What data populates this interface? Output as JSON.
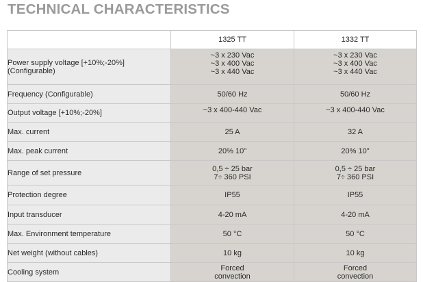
{
  "title": "TECHNICAL CHARACTERISTICS",
  "columns": [
    "1325 TT",
    "1332 TT"
  ],
  "rows": [
    {
      "label": [
        "Power supply voltage [+10%;-20%]",
        "(Configurable)"
      ],
      "a": [
        "~3 x 230 Vac",
        "~3 x 400 Vac",
        "~3 x 440 Vac"
      ],
      "b": [
        "~3 x 230 Vac",
        "~3 x 400 Vac",
        "~3 x 440 Vac"
      ]
    },
    {
      "label": [
        "Frequency (Configurable)"
      ],
      "a": [
        "50/60 Hz"
      ],
      "b": [
        "50/60 Hz"
      ]
    },
    {
      "label": [
        "Output voltage  [+10%;-20%]"
      ],
      "a": [
        "~3 x 400-440 Vac"
      ],
      "b": [
        "~3 x 400-440 Vac"
      ]
    },
    {
      "label": [
        "Max. current"
      ],
      "a": [
        "25 A"
      ],
      "b": [
        "32 A"
      ]
    },
    {
      "label": [
        "Max. peak current"
      ],
      "a": [
        "20% 10\""
      ],
      "b": [
        "20% 10\""
      ]
    },
    {
      "label": [
        "Range of set pressure"
      ],
      "a": [
        "0,5 ÷ 25 bar",
        "7÷ 360 PSI"
      ],
      "b": [
        "0,5 ÷ 25 bar",
        "7÷ 360 PSI"
      ]
    },
    {
      "label": [
        "Protection degree"
      ],
      "a": [
        "IP55"
      ],
      "b": [
        "IP55"
      ]
    },
    {
      "label": [
        "Input transducer"
      ],
      "a": [
        "4-20 mA"
      ],
      "b": [
        "4-20 mA"
      ]
    },
    {
      "label": [
        "Max. Environment temperature"
      ],
      "a": [
        "50 °C"
      ],
      "b": [
        "50 °C"
      ]
    },
    {
      "label": [
        "Net weight (without cables)"
      ],
      "a": [
        "10 kg"
      ],
      "b": [
        "10 kg"
      ]
    },
    {
      "label": [
        "Cooling system"
      ],
      "a": [
        "Forced",
        "convection"
      ],
      "b": [
        "Forced",
        "convection"
      ]
    }
  ]
}
